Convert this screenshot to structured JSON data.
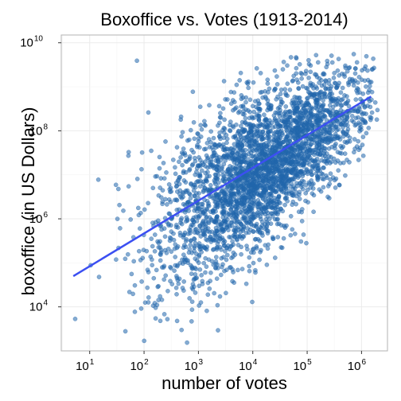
{
  "chart_data": {
    "type": "scatter",
    "title": "Boxoffice vs. Votes (1913-2014)",
    "xlabel": "number of votes",
    "ylabel": "boxoffice (in US Dollars)",
    "x_scale": "log10",
    "y_scale": "log10",
    "xlim": [
      3,
      3000000
    ],
    "ylim": [
      1000,
      15000000000
    ],
    "x_ticks": [
      {
        "value": 10,
        "base": "10",
        "exp": "1"
      },
      {
        "value": 100,
        "base": "10",
        "exp": "2"
      },
      {
        "value": 1000,
        "base": "10",
        "exp": "3"
      },
      {
        "value": 10000,
        "base": "10",
        "exp": "4"
      },
      {
        "value": 100000,
        "base": "10",
        "exp": "5"
      },
      {
        "value": 1000000,
        "base": "10",
        "exp": "6"
      }
    ],
    "y_ticks": [
      {
        "value": 10000,
        "base": "10",
        "exp": "4"
      },
      {
        "value": 1000000,
        "base": "10",
        "exp": "6"
      },
      {
        "value": 100000000,
        "base": "10",
        "exp": "8"
      },
      {
        "value": 10000000000,
        "base": "10",
        "exp": "10"
      }
    ],
    "grid": true,
    "point_color": "#2166ac",
    "line_color": "#3b4ff2",
    "trend_line": {
      "x": [
        5,
        1500000
      ],
      "y": [
        50000,
        600000000
      ]
    },
    "point_density_model": {
      "x_log10_mean": 4.2,
      "x_log10_sd": 1.0,
      "y_log10_intercept": 3.7,
      "y_log10_slope": 0.82,
      "y_log10_sd_low_x": 1.35,
      "y_log10_sd_high_x": 0.55,
      "x_log10_min": 0.7,
      "x_log10_max": 6.3,
      "y_log10_min": 3.1,
      "y_log10_max": 9.9,
      "point_count": 3200
    }
  }
}
